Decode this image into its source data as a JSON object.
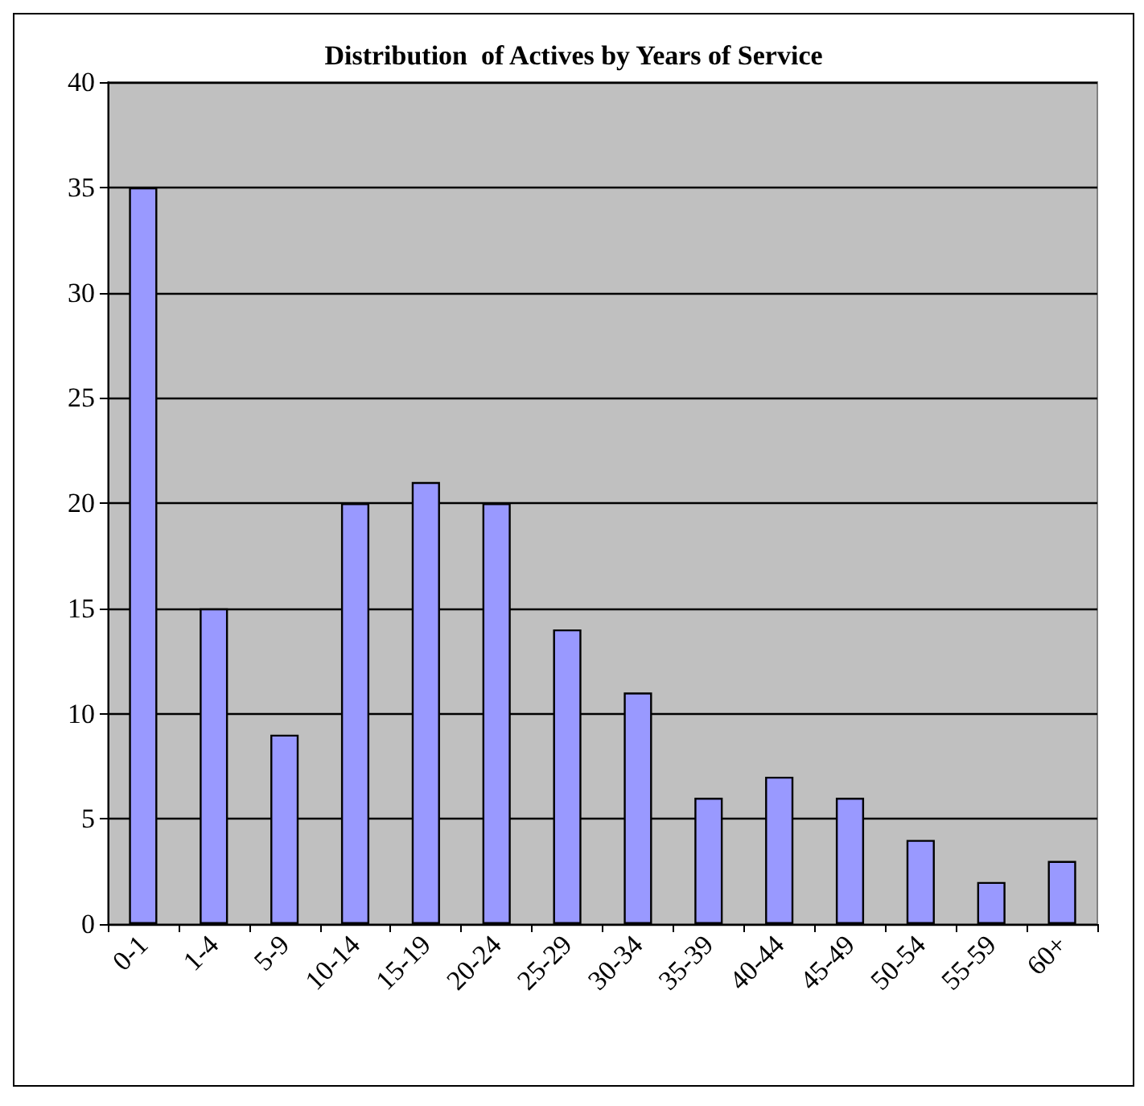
{
  "chart_data": {
    "type": "bar",
    "title": "Distribution  of Actives by Years of Service",
    "categories": [
      "0-1",
      "1-4",
      "5-9",
      "10-14",
      "15-19",
      "20-24",
      "25-29",
      "30-34",
      "35-39",
      "40-44",
      "45-49",
      "50-54",
      "55-59",
      "60+"
    ],
    "values": [
      35,
      15,
      9,
      20,
      21,
      20,
      14,
      11,
      6,
      7,
      6,
      4,
      2,
      3
    ],
    "color": "#9999ff",
    "ylim": [
      0,
      40
    ],
    "yticks": [
      0,
      5,
      10,
      15,
      20,
      25,
      30,
      35,
      40
    ],
    "grid": "y"
  }
}
